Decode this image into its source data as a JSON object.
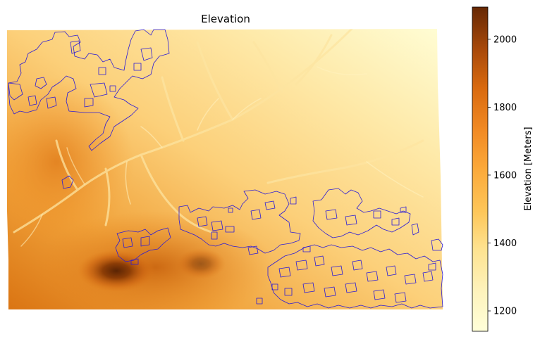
{
  "map": {
    "title": "Elevation",
    "overlay_color": "#2b1bd6",
    "colormap": [
      "#ffffd9",
      "#fee9a8",
      "#fdd27b",
      "#fbb54c",
      "#f4962a",
      "#e17818",
      "#c65f0c",
      "#a24808",
      "#7a3306",
      "#5c2504"
    ]
  },
  "colorbar": {
    "label": "Elevation [Meters]",
    "range": [
      1140,
      2095
    ],
    "ticks": [
      {
        "value": 1200,
        "label": "1200"
      },
      {
        "value": 1400,
        "label": "1400"
      },
      {
        "value": 1600,
        "label": "1600"
      },
      {
        "value": 1800,
        "label": "1800"
      },
      {
        "value": 2000,
        "label": "2000"
      }
    ]
  }
}
